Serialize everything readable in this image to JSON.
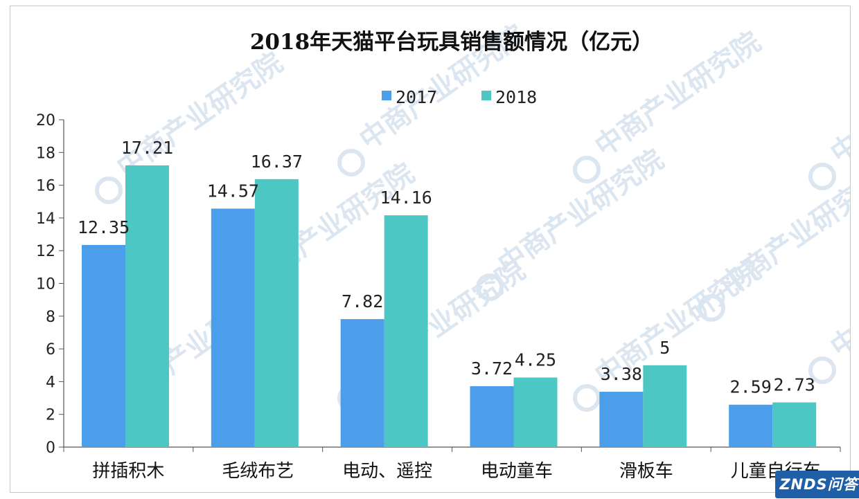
{
  "chart_data": {
    "type": "bar",
    "title": "2018年天猫平台玩具销售额情况（亿元）",
    "categories": [
      "拼插积木",
      "毛绒布艺",
      "电动、遥控",
      "电动童车",
      "滑板车",
      "儿童自行车"
    ],
    "series": [
      {
        "name": "2017",
        "values": [
          12.35,
          14.57,
          7.82,
          3.72,
          3.38,
          2.59
        ],
        "labels": [
          "12.35",
          "14.57",
          "7.82",
          "3.72",
          "3.38",
          "2.59"
        ],
        "color": "#4a9eea"
      },
      {
        "name": "2018",
        "values": [
          17.21,
          16.37,
          14.16,
          4.25,
          5,
          2.73
        ],
        "labels": [
          "17.21",
          "16.37",
          "14.16",
          "4.25",
          "5",
          "2.73"
        ],
        "color": "#4cc7c4"
      }
    ],
    "ylim": [
      0,
      20
    ],
    "yticks": [
      0,
      2,
      4,
      6,
      8,
      10,
      12,
      14,
      16,
      18,
      20
    ],
    "xlabel": "",
    "ylabel": "",
    "legend_position": "top-center",
    "grid": false
  },
  "watermark": {
    "text": "中商产业研究院",
    "color": "#dce6f0"
  },
  "badge": {
    "text": "ZNDS问答",
    "color": "#1f5fa8"
  }
}
